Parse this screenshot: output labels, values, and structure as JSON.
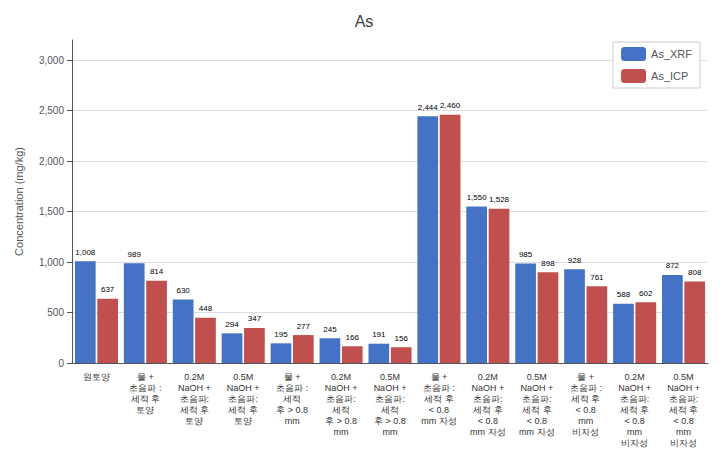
{
  "chart_data": {
    "type": "bar",
    "title": "As",
    "y_label": "Concentration (mg/kg)",
    "categories": [
      "원토양",
      "물 +\n초음파 :\n세적 후\n토양",
      "0.2M\nNaOH +\n초음파:\n세적 후\n토양",
      "0.5M\nNaOH +\n초음파:\n세적 후\n토양",
      "물 +\n초음파 :\n세적\n후 > 0.8\nmm",
      "0.2M\nNaOH +\n초음파:\n세적\n후 > 0.8\nmm",
      "0.5M\nNaOH +\n초음파:\n세적\n후 > 0.8\nmm",
      "물 +\n초음파 :\n세적 후\n< 0.8\nmm 자성",
      "0.2M\nNaOH +\n초음파:\n세적 후\n< 0.8\nmm 자성",
      "0.5M\nNaOH +\n초음파:\n세적 후\n< 0.8\nmm 자성",
      "물 +\n초음파 :\n세적 후\n< 0.8\nmm\n비자성",
      "0.2M\nNaOH +\n초음파:\n세적 후\n< 0.8\nmm\n비자성",
      "0.5M\nNaOH +\n초음파:\n세적 후\n< 0.8\nmm\n비자성"
    ],
    "series": [
      {
        "name": "As_XRF",
        "color": "#4472C4",
        "values": [
          1008,
          989,
          630,
          294,
          195,
          245,
          191,
          2444,
          1550,
          985,
          928,
          588,
          872
        ],
        "value_labels": [
          "1,008",
          "989",
          "630",
          "294",
          "195",
          "245",
          "191",
          "2,444",
          "1,550",
          "985",
          "928",
          "588",
          "872"
        ]
      },
      {
        "name": "As_ICP",
        "color": "#C0504D",
        "values": [
          637,
          814,
          448,
          347,
          277,
          166,
          156,
          2460,
          1528,
          898,
          761,
          602,
          808
        ],
        "value_labels": [
          "637",
          "814",
          "448",
          "347",
          "277",
          "166",
          "156",
          "2,460",
          "1,528",
          "898",
          "761",
          "602",
          "808"
        ]
      }
    ],
    "ylim": [
      0,
      3200
    ],
    "yticks": [
      0,
      500,
      {
        "value": 1000,
        "label": "1,000"
      },
      {
        "value": 1500,
        "label": "1,500"
      },
      {
        "value": 2000,
        "label": "2,000"
      },
      {
        "value": 2500,
        "label": "2,500"
      },
      {
        "value": 3000,
        "label": "3,000"
      }
    ],
    "grid": true,
    "legend": "upper right",
    "data_labels": true
  }
}
